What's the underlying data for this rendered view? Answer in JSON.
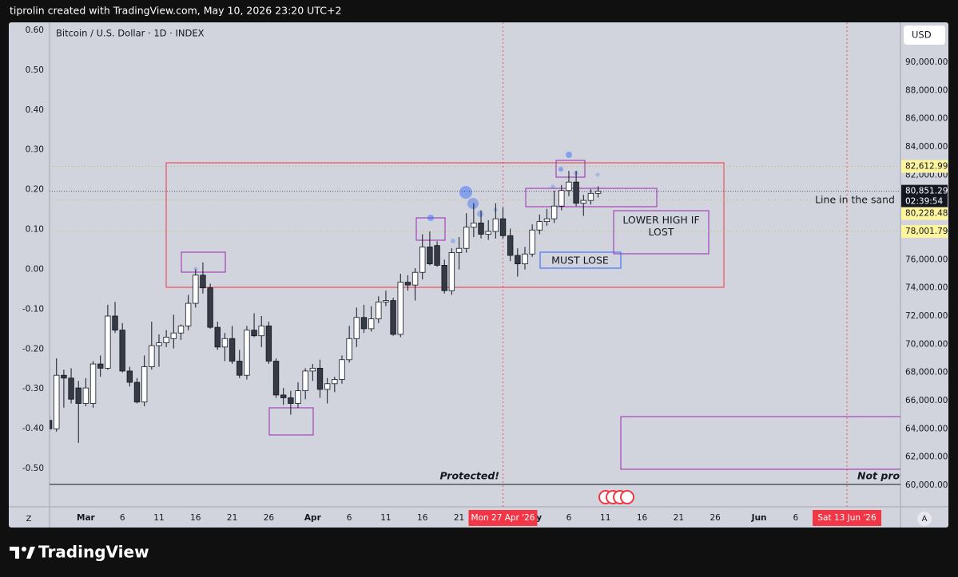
{
  "header": {
    "text": "tiprolin created with TradingView.com, May 10, 2026 23:20 UTC+2"
  },
  "chart_data": {
    "type": "candlestick",
    "title": "Bitcoin / U.S. Dollar · 1D · INDEX",
    "currency": "USD",
    "categories": [
      null,
      null,
      null,
      null,
      null,
      "Mar",
      null,
      null,
      null,
      null,
      "6",
      null,
      null,
      null,
      null,
      "11",
      null,
      null,
      null,
      null,
      "16",
      null,
      null,
      null,
      null,
      "21",
      null,
      null,
      null,
      null,
      "26",
      null,
      null,
      null,
      null,
      null,
      "Apr",
      null,
      null,
      null,
      null,
      "6",
      null,
      null,
      null,
      null,
      "11",
      null,
      null,
      null,
      null,
      "16",
      null,
      null,
      null,
      null,
      "21",
      null,
      null,
      null,
      null,
      null,
      {
        "label": "Mon 27 Apr '26",
        "marked": true
      },
      null,
      null,
      null,
      "May",
      null,
      null,
      null,
      null,
      "6",
      null,
      null,
      null,
      null,
      "11",
      null,
      null,
      null,
      null,
      "16",
      null,
      null,
      null,
      null,
      "21",
      null,
      null,
      null,
      null,
      "26",
      null,
      null,
      null,
      null,
      null,
      "Jun",
      null,
      null,
      null,
      null,
      "6",
      null,
      null,
      null,
      null,
      null,
      null,
      {
        "label": "Sat 13 Jun '26",
        "marked": true
      },
      null,
      null,
      null,
      null,
      null,
      null
    ],
    "open": [
      64600,
      64000,
      67800,
      67600,
      66900,
      65800,
      65800,
      68600,
      68300,
      72000,
      71000,
      68100,
      67300,
      65900,
      68400,
      69900,
      70100,
      70400,
      70800,
      71300,
      72900,
      74900,
      74000,
      71200,
      69800,
      70400,
      68800,
      67800,
      71000,
      70600,
      71300,
      68800,
      66400,
      66200,
      65800,
      66700,
      68100,
      68300,
      66800,
      67200,
      67500,
      68900,
      70400,
      71900,
      71100,
      71800,
      73000,
      73100,
      70700,
      74400,
      74200,
      75100,
      76900,
      77000,
      75600,
      73800,
      76500,
      76800,
      78300,
      78600,
      77800,
      78000,
      78900,
      77700,
      76300,
      75700,
      76400,
      78100,
      78700,
      78900,
      79800,
      80900,
      81500,
      80000,
      80200,
      80700,
      null,
      null,
      null,
      null,
      null,
      null,
      null,
      null,
      null,
      null,
      null,
      null,
      null,
      null,
      null,
      null,
      null,
      null,
      null,
      null,
      null,
      null,
      null,
      null,
      null,
      null,
      null,
      null,
      null,
      null,
      null,
      null,
      null,
      null,
      null,
      null,
      null,
      null,
      null,
      null
    ],
    "high": [
      65000,
      69000,
      68200,
      68300,
      67400,
      67600,
      68800,
      69200,
      72800,
      73000,
      71500,
      68400,
      67600,
      69200,
      71600,
      70700,
      71000,
      72100,
      71400,
      73500,
      75300,
      75800,
      74300,
      71600,
      70800,
      71300,
      69600,
      71300,
      72200,
      72000,
      71600,
      69000,
      66900,
      66700,
      67300,
      68300,
      68600,
      68900,
      67600,
      67700,
      69200,
      71300,
      72600,
      72800,
      72700,
      73400,
      73800,
      73300,
      75000,
      74900,
      75400,
      77800,
      78000,
      77300,
      76000,
      76800,
      77600,
      79300,
      80000,
      79500,
      78800,
      80000,
      79700,
      78200,
      76800,
      76900,
      78500,
      79200,
      79600,
      80900,
      81300,
      82300,
      82300,
      80600,
      81000,
      81200,
      null,
      null,
      null,
      null,
      null,
      null,
      null,
      null,
      null,
      null,
      null,
      null,
      null,
      null,
      null,
      null,
      null,
      null,
      null,
      null,
      null,
      null,
      null,
      null,
      null,
      null,
      null,
      null,
      null,
      null,
      null,
      null,
      null,
      null,
      null,
      null,
      null,
      null,
      null,
      null
    ],
    "low": [
      63800,
      63800,
      65500,
      65800,
      63000,
      65600,
      65500,
      67700,
      68200,
      70800,
      68000,
      67000,
      65800,
      65600,
      68200,
      68400,
      69800,
      69700,
      70300,
      71000,
      72600,
      73600,
      71100,
      69600,
      68800,
      68600,
      67600,
      67500,
      70500,
      69800,
      68600,
      66200,
      65700,
      65000,
      65500,
      66100,
      67400,
      66200,
      65800,
      66600,
      67200,
      68700,
      69800,
      70800,
      70900,
      71500,
      72700,
      70600,
      70500,
      73800,
      73100,
      74600,
      75600,
      75500,
      73600,
      73500,
      75300,
      76500,
      77600,
      77500,
      77400,
      77500,
      77500,
      75900,
      74800,
      75300,
      76200,
      77800,
      78400,
      78600,
      79500,
      80500,
      79800,
      79100,
      79900,
      80400,
      null,
      null,
      null,
      null,
      null,
      null,
      null,
      null,
      null,
      null,
      null,
      null,
      null,
      null,
      null,
      null,
      null,
      null,
      null,
      null,
      null,
      null,
      null,
      null,
      null,
      null,
      null,
      null,
      null,
      null,
      null,
      null,
      null,
      null,
      null,
      null,
      null,
      null,
      null,
      null
    ],
    "close": [
      64000,
      67800,
      67600,
      66100,
      65800,
      66900,
      68600,
      68300,
      72000,
      71000,
      68100,
      67300,
      65900,
      68400,
      69900,
      70100,
      70500,
      70800,
      71300,
      72900,
      74900,
      74000,
      71200,
      69800,
      70400,
      68800,
      67800,
      71000,
      70600,
      71300,
      68800,
      66400,
      66200,
      65800,
      66700,
      68100,
      68300,
      66800,
      67200,
      67500,
      68900,
      70400,
      71900,
      71100,
      71800,
      73000,
      73100,
      70700,
      74400,
      74200,
      75100,
      76900,
      75700,
      75600,
      73800,
      76500,
      76800,
      78300,
      78600,
      77800,
      78000,
      78900,
      77700,
      76300,
      75700,
      76400,
      78100,
      78700,
      78900,
      79800,
      80900,
      81500,
      80000,
      80200,
      80700,
      80851.29,
      null,
      null,
      null,
      null,
      null,
      null,
      null,
      null,
      null,
      null,
      null,
      null,
      null,
      null,
      null,
      null,
      null,
      null,
      null,
      null,
      null,
      null,
      null,
      null,
      null,
      null,
      null,
      null,
      null,
      null,
      null,
      null,
      null,
      null,
      null,
      null,
      null,
      null,
      null,
      null
    ],
    "up_color": "#ffffff",
    "down_color": "#363a45",
    "ylim": [
      58472,
      92830
    ],
    "yticks": [
      {
        "value": 60000,
        "label": "60,000.00"
      },
      {
        "value": 62000,
        "label": "62,000.00"
      },
      {
        "value": 64000,
        "label": "64,000.00"
      },
      {
        "value": 66000,
        "label": "66,000.00"
      },
      {
        "value": 68000,
        "label": "68,000.00"
      },
      {
        "value": 70000,
        "label": "70,000.00"
      },
      {
        "value": 72000,
        "label": "72,000.00"
      },
      {
        "value": 74000,
        "label": "74,000.00"
      },
      {
        "value": 76000,
        "label": "76,000.00"
      },
      {
        "value": 78000,
        "label": "78,000.00"
      },
      {
        "value": 80000,
        "label": "80,000.00"
      },
      {
        "value": 82000,
        "label": "82,000.00"
      },
      {
        "value": 84000,
        "label": "84,000.00"
      },
      {
        "value": 86000,
        "label": "86,000.00"
      },
      {
        "value": 88000,
        "label": "88,000.00"
      },
      {
        "value": 90000,
        "label": "90,000.00"
      }
    ],
    "y2lim": [
      -0.596,
      0.62
    ],
    "y2ticks": [
      {
        "value": 0.6,
        "label": "0.60"
      },
      {
        "value": 0.5,
        "label": "0.50"
      },
      {
        "value": 0.4,
        "label": "0.40"
      },
      {
        "value": 0.3,
        "label": "0.30"
      },
      {
        "value": 0.2,
        "label": "0.20"
      },
      {
        "value": 0.1,
        "label": "0.10"
      },
      {
        "value": 0,
        "label": "0.00"
      },
      {
        "value": -0.1,
        "label": "-0.10"
      },
      {
        "value": -0.2,
        "label": "-0.20"
      },
      {
        "value": -0.3,
        "label": "-0.30"
      },
      {
        "value": -0.4,
        "label": "-0.40"
      },
      {
        "value": -0.5,
        "label": "-0.50"
      }
    ],
    "grid": false,
    "last_price": {
      "value": 80851.29,
      "label": "80,851.29",
      "countdown": "02:39:54"
    },
    "price_lines": [
      {
        "value": 82612.99,
        "label": "82,612.99",
        "color": "#fff59d"
      },
      {
        "value": 80228.48,
        "label": "80,228.48",
        "color": "#fff59d"
      },
      {
        "value": 78001.79,
        "label": "78,001.79",
        "color": "#fff59d"
      }
    ]
  },
  "annotations": {
    "line_in_the_sand": "Line in the sand",
    "lower_high": "LOWER HIGH IF LOST",
    "must_lose": "MUST LOSE",
    "protected": "Protected!",
    "not_protected": "Not prote"
  },
  "scale_buttons": [
    "Z",
    "A"
  ],
  "footer": {
    "brand": "TradingView"
  }
}
